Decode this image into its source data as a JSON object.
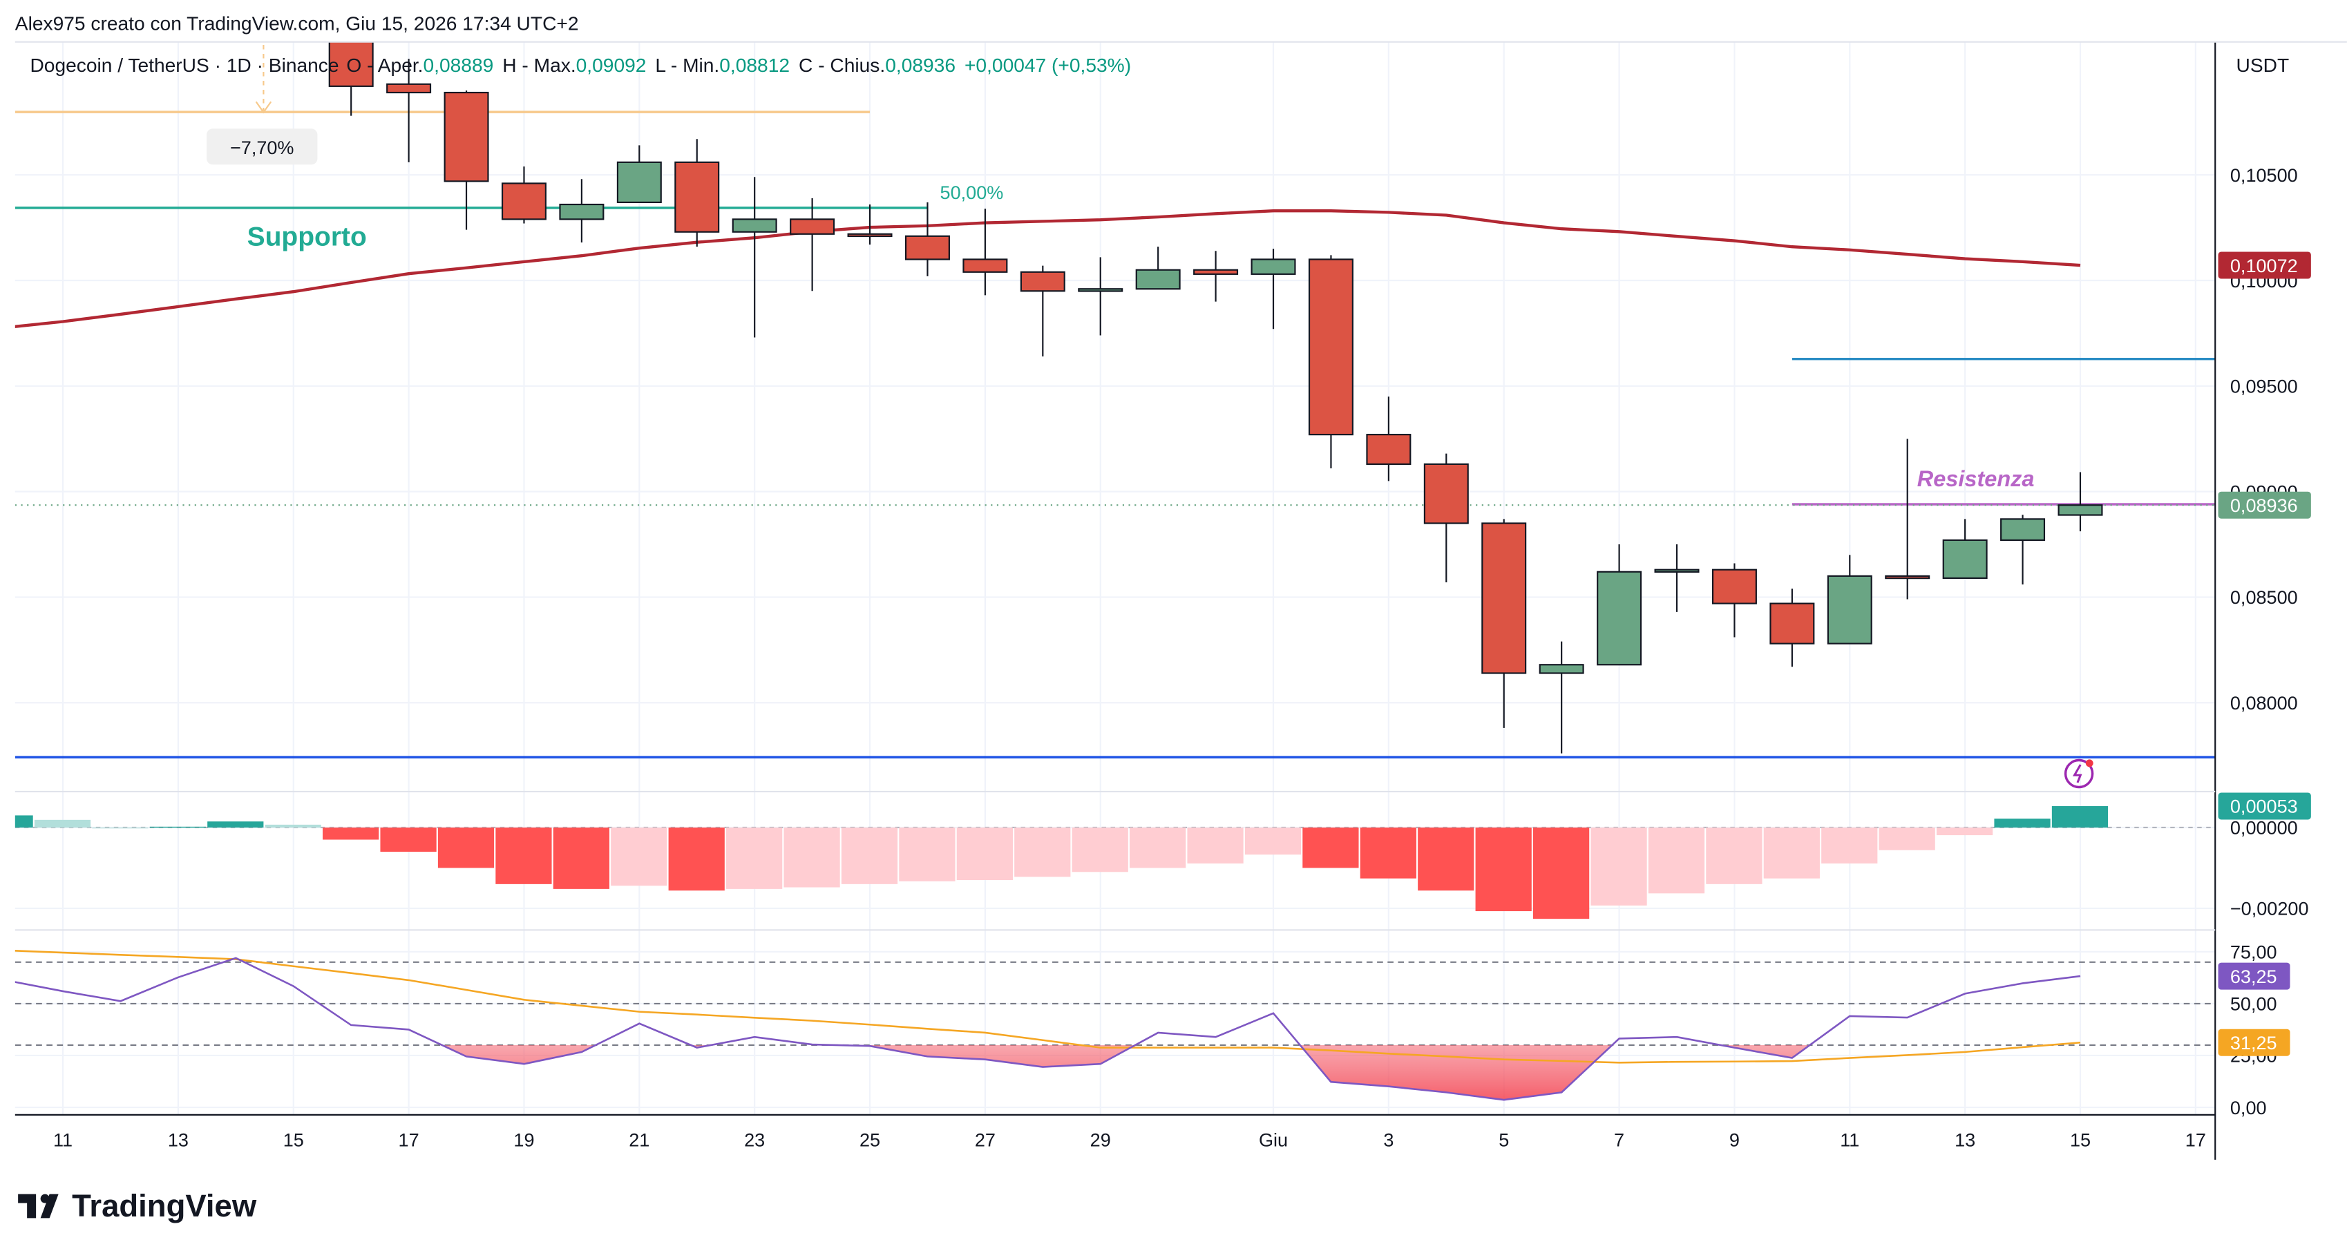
{
  "header": "Alex975 creato con TradingView.com, Giu 15, 2026 17:34 UTC+2",
  "legend": {
    "symbol": "Dogecoin / TetherUS · 1D · Binance",
    "o_label": "O - Aper.",
    "o": "0,08889",
    "h_label": "H - Max.",
    "h": "0,09092",
    "l_label": "L - Min.",
    "l": "0,08812",
    "c_label": "C - Chius.",
    "c": "0,08936",
    "change": "+0,00047 (+0,53%)"
  },
  "currency": "USDT",
  "brand": "TradingView",
  "chart_data": [
    {
      "type": "candlestick",
      "xlim": [
        0.17,
        38.34
      ],
      "ylim": [
        0.07586,
        0.1113
      ],
      "yticks": [
        {
          "value": 0.08,
          "label": "0,08000"
        },
        {
          "value": 0.085,
          "label": "0,08500"
        },
        {
          "value": 0.09,
          "label": "0,09000"
        },
        {
          "value": 0.095,
          "label": "0,09500"
        },
        {
          "value": 0.1,
          "label": "0,10000"
        },
        {
          "value": 0.105,
          "label": "0,10500"
        }
      ],
      "up_color": "#6aa584",
      "down_color": "#dc5444",
      "x": [
        6,
        7,
        8,
        9,
        10,
        11,
        12,
        13,
        14,
        15,
        16,
        17,
        18,
        19,
        20,
        21,
        22,
        23,
        24,
        25,
        26,
        27,
        28,
        29,
        30,
        31,
        32,
        33,
        34,
        35,
        36
      ],
      "open": [
        0.1119,
        0.1093,
        0.1089,
        0.1046,
        0.1029,
        0.1037,
        0.1056,
        0.1023,
        0.1029,
        0.1022,
        0.1021,
        0.101,
        0.1004,
        0.0995,
        0.0996,
        0.1005,
        0.1003,
        0.101,
        0.0927,
        0.0913,
        0.0885,
        0.0814,
        0.0818,
        0.0862,
        0.0863,
        0.0847,
        0.0828,
        0.086,
        0.0859,
        0.0877,
        0.08889
      ],
      "high": [
        0.1122,
        0.1105,
        0.109,
        0.1054,
        0.1048,
        0.1064,
        0.1067,
        0.1049,
        0.1039,
        0.1036,
        0.1037,
        0.1034,
        0.1007,
        0.1011,
        0.1016,
        0.1014,
        0.1015,
        0.1012,
        0.0945,
        0.0918,
        0.0887,
        0.0829,
        0.0875,
        0.0875,
        0.0866,
        0.0854,
        0.087,
        0.0925,
        0.0887,
        0.0889,
        0.09092
      ],
      "low": [
        0.1078,
        0.1056,
        0.1024,
        0.1027,
        0.1018,
        0.1037,
        0.1016,
        0.0973,
        0.0995,
        0.1017,
        0.1002,
        0.0993,
        0.0964,
        0.0974,
        0.0996,
        0.099,
        0.0977,
        0.0911,
        0.0905,
        0.0857,
        0.0788,
        0.0776,
        0.0818,
        0.0843,
        0.0831,
        0.0817,
        0.0828,
        0.0849,
        0.0859,
        0.0856,
        0.08812
      ],
      "close": [
        0.1092,
        0.1089,
        0.1047,
        0.1029,
        0.1036,
        0.1056,
        0.1023,
        0.1029,
        0.1022,
        0.1021,
        0.101,
        0.1004,
        0.0995,
        0.0996,
        0.1005,
        0.1003,
        0.101,
        0.0927,
        0.0913,
        0.0885,
        0.0814,
        0.0818,
        0.0862,
        0.0863,
        0.0847,
        0.0828,
        0.086,
        0.0859,
        0.0877,
        0.0887,
        0.08936
      ],
      "close_last_label": "0,08936",
      "ma": {
        "color": "#b22833",
        "x": [
          0,
          1,
          2,
          3,
          4,
          5,
          6,
          7,
          8,
          9,
          10,
          11,
          12,
          13,
          14,
          15,
          16,
          17,
          18,
          19,
          20,
          21,
          22,
          23,
          24,
          25,
          26,
          27,
          28,
          29,
          30,
          31,
          32,
          33,
          34,
          35,
          36
        ],
        "values": [
          0.09777,
          0.09805,
          0.0984,
          0.09876,
          0.09912,
          0.09947,
          0.0999,
          0.10032,
          0.1006,
          0.10089,
          0.10117,
          0.10153,
          0.10181,
          0.10202,
          0.10231,
          0.10252,
          0.10259,
          0.10273,
          0.1028,
          0.10287,
          0.10301,
          0.10316,
          0.1033,
          0.1033,
          0.10323,
          0.10309,
          0.10273,
          0.10245,
          0.10231,
          0.10209,
          0.10188,
          0.1016,
          0.10145,
          0.10124,
          0.10103,
          0.10089,
          0.10072
        ],
        "last_label": "0,10072"
      },
      "levels": [
        {
          "value": 0.10344,
          "x_range": [
            0.17,
            16
          ],
          "color": "#22ab94"
        },
        {
          "value": 0.10798,
          "x_range": [
            0.17,
            15
          ],
          "color": "#f7c98b"
        },
        {
          "value": 0.07742,
          "x_range": [
            0.17,
            38.34
          ],
          "color": "#1e53e5"
        },
        {
          "value": 0.09628,
          "x_range": [
            31,
            38.34
          ],
          "color": "#2a8cc4"
        },
        {
          "value": 0.0894,
          "x_range": [
            31,
            38.34
          ],
          "color": "#b866c7"
        }
      ],
      "annotations": {
        "support": "Supporto",
        "resistance": "Resistenza",
        "fib": "50,00%",
        "change": "−7,70%"
      }
    },
    {
      "type": "bar",
      "xlim": [
        0.17,
        38.34
      ],
      "ylim": [
        -0.002481,
        0.000852
      ],
      "yticks": [
        {
          "value": -0.002,
          "label": "−0,00200"
        },
        {
          "value": 0,
          "label": "0,00000"
        }
      ],
      "x": [
        0,
        1,
        2,
        3,
        4,
        5,
        6,
        7,
        8,
        9,
        10,
        11,
        12,
        13,
        14,
        15,
        16,
        17,
        18,
        19,
        20,
        21,
        22,
        23,
        24,
        25,
        26,
        27,
        28,
        29,
        30,
        31,
        32,
        33,
        34,
        35,
        36
      ],
      "values": [
        0.0003,
        0.00019,
        0,
        2e-05,
        0.00015,
        7e-05,
        -0.0003,
        -0.0006,
        -0.001,
        -0.0014,
        -0.00152,
        -0.00144,
        -0.00156,
        -0.00152,
        -0.00148,
        -0.0014,
        -0.00133,
        -0.0013,
        -0.00122,
        -0.0011,
        -0.001,
        -0.00089,
        -0.00067,
        -0.001,
        -0.00126,
        -0.00156,
        -0.00207,
        -0.00226,
        -0.00193,
        -0.00163,
        -0.0014,
        -0.00126,
        -0.00089,
        -0.00056,
        -0.00019,
        0.00022,
        0.00053
      ],
      "colors": [
        "#26a69a",
        "#b2dfdb",
        "#b2dfdb",
        "#26a69a",
        "#26a69a",
        "#b2dfdb",
        "#ff5252",
        "#ff5252",
        "#ff5252",
        "#ff5252",
        "#ff5252",
        "#ffcdd2",
        "#ff5252",
        "#ffcdd2",
        "#ffcdd2",
        "#ffcdd2",
        "#ffcdd2",
        "#ffcdd2",
        "#ffcdd2",
        "#ffcdd2",
        "#ffcdd2",
        "#ffcdd2",
        "#ffcdd2",
        "#ff5252",
        "#ff5252",
        "#ff5252",
        "#ff5252",
        "#ff5252",
        "#ffcdd2",
        "#ffcdd2",
        "#ffcdd2",
        "#ffcdd2",
        "#ffcdd2",
        "#ffcdd2",
        "#ffcdd2",
        "#26a69a",
        "#26a69a"
      ],
      "last_label": "0,00053"
    },
    {
      "type": "line",
      "xlim": [
        0.17,
        38.34
      ],
      "ylim": [
        -3.6,
        84.4
      ],
      "yticks": [
        {
          "value": 0,
          "label": "0,00"
        },
        {
          "value": 25,
          "label": "25,00"
        },
        {
          "value": 50,
          "label": "50,00"
        },
        {
          "value": 75,
          "label": "75,00"
        }
      ],
      "bands": [
        70,
        50,
        30
      ],
      "xticks": [
        {
          "value": 1,
          "label": "11"
        },
        {
          "value": 3,
          "label": "13"
        },
        {
          "value": 5,
          "label": "15"
        },
        {
          "value": 7,
          "label": "17"
        },
        {
          "value": 9,
          "label": "19"
        },
        {
          "value": 11,
          "label": "21"
        },
        {
          "value": 13,
          "label": "23"
        },
        {
          "value": 15,
          "label": "25"
        },
        {
          "value": 17,
          "label": "27"
        },
        {
          "value": 19,
          "label": "29"
        },
        {
          "value": 22,
          "label": "Giu"
        },
        {
          "value": 24,
          "label": "3"
        },
        {
          "value": 26,
          "label": "5"
        },
        {
          "value": 28,
          "label": "7"
        },
        {
          "value": 30,
          "label": "9"
        },
        {
          "value": 32,
          "label": "11"
        },
        {
          "value": 34,
          "label": "13"
        },
        {
          "value": 36,
          "label": "15"
        },
        {
          "value": 38,
          "label": "17"
        }
      ],
      "x": [
        0,
        1,
        2,
        3,
        4,
        5,
        6,
        7,
        8,
        9,
        10,
        11,
        12,
        13,
        14,
        15,
        16,
        17,
        18,
        19,
        20,
        21,
        22,
        23,
        24,
        25,
        26,
        27,
        28,
        29,
        30,
        31,
        32,
        33,
        34,
        35,
        36
      ],
      "series": [
        {
          "color": "#7e57c2",
          "values": [
            61.3,
            56,
            51.2,
            62.7,
            72,
            58.4,
            39.7,
            37.5,
            24.5,
            20.9,
            26.7,
            40.4,
            28.8,
            33.9,
            30.3,
            29.6,
            24.5,
            23.1,
            19.5,
            20.9,
            36,
            33.9,
            45.4,
            12.3,
            10.1,
            7.2,
            3.6,
            7.2,
            33.2,
            33.9,
            28.8,
            23.8,
            44,
            43.3,
            54.8,
            59.8,
            63.25
          ],
          "last_label": "63,25"
        },
        {
          "color": "#f5a623",
          "values": [
            75.7,
            74.6,
            73.5,
            72.5,
            71.4,
            68,
            64.7,
            61.3,
            56.6,
            51.9,
            49,
            46.1,
            44.7,
            43.2,
            41.8,
            39.9,
            37.9,
            36,
            32.4,
            28.8,
            28.8,
            28.8,
            28.8,
            27.4,
            25.9,
            24.5,
            23.1,
            22.4,
            21.6,
            21.9,
            22.1,
            22.3,
            23.8,
            25.2,
            26.7,
            29,
            31.25
          ],
          "last_label": "31,25"
        }
      ]
    }
  ]
}
